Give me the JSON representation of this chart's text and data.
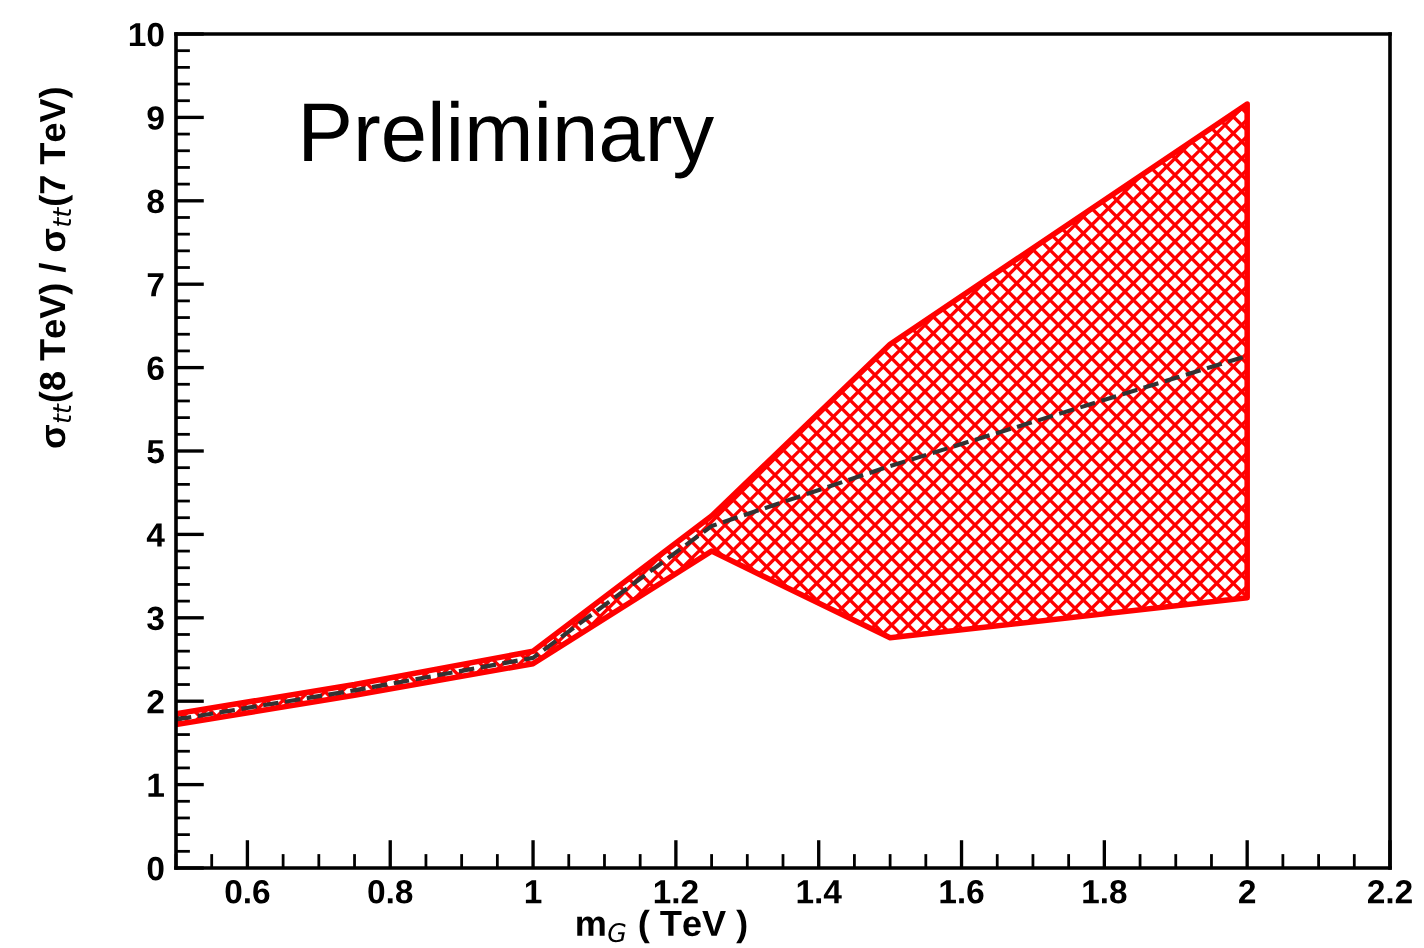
{
  "chart_data": {
    "type": "line",
    "xlabel": "m$_{G}$ ( TeV )",
    "ylabel": "σ$_{tt}$(8 TeV) / σ$_{tt}$(7 TeV)",
    "annotations": [
      "Preliminary"
    ],
    "x": [
      0.5,
      0.75,
      1.0,
      1.25,
      1.5,
      2.0
    ],
    "series": [
      {
        "color": "#333333",
        "colors": [
          "#ff0000",
          "#ff0000",
          "#ff0000",
          "#ff0000",
          "#ff0000",
          "#ff0000"
        ],
        "values": [
          1.78,
          2.13,
          2.52,
          4.1,
          4.82,
          6.14
        ],
        "lower": [
          1.72,
          2.07,
          2.45,
          3.8,
          2.76,
          3.24
        ],
        "upper": [
          1.85,
          2.2,
          2.6,
          4.22,
          6.28,
          9.16
        ],
        "line_style": "dashed"
      }
    ],
    "xlim": [
      0.5,
      2.2
    ],
    "xticks": [
      0.6,
      0.8,
      1,
      1.2,
      1.4,
      1.6,
      1.8,
      2,
      2.2
    ],
    "ylim": [
      0,
      10
    ],
    "yticks": [
      0,
      1,
      2,
      3,
      4,
      5,
      6,
      7,
      8,
      9,
      10
    ],
    "grid": false,
    "legend": false,
    "marker": "none"
  }
}
